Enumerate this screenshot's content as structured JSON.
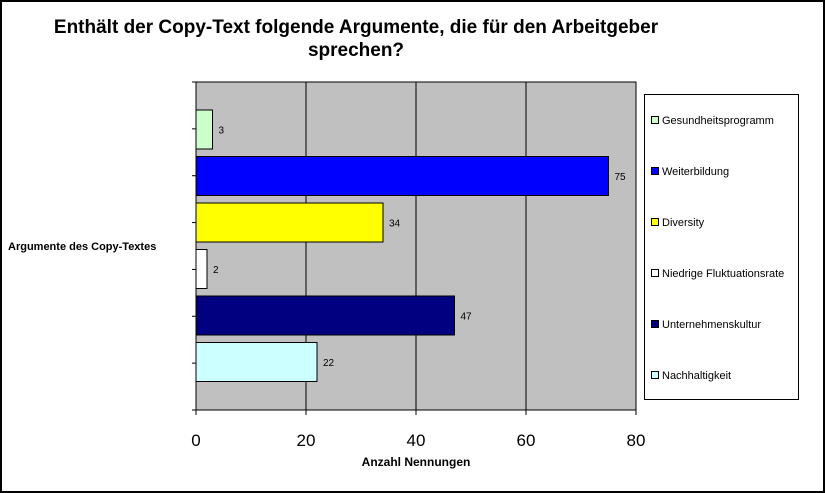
{
  "chart_data": {
    "type": "bar",
    "orientation": "horizontal",
    "title": "Enthält der Copy-Text folgende Argumente, die für den Arbeitgeber sprechen?",
    "title_lines": [
      "Enthält der Copy-Text folgende Argumente, die für den Arbeitgeber",
      "sprechen?"
    ],
    "xlabel": "Anzahl Nennungen",
    "ylabel": "Argumente des Copy-Textes",
    "xlim": [
      0,
      80
    ],
    "x_ticks": [
      0,
      20,
      40,
      60,
      80
    ],
    "grid": true,
    "legend_position": "right",
    "plot_background": "#c0c0c0",
    "categories": [
      "Gesundheitsprogramm",
      "Weiterbildung",
      "Diversity",
      "Niedrige Fluktuationsrate",
      "Unternehmenskultur",
      "Nachhaltigkeit"
    ],
    "values": [
      3,
      75,
      34,
      2,
      47,
      22
    ],
    "colors": [
      "#ccffcc",
      "#0000ff",
      "#ffff00",
      "#ffffff",
      "#000080",
      "#ccffff"
    ]
  }
}
